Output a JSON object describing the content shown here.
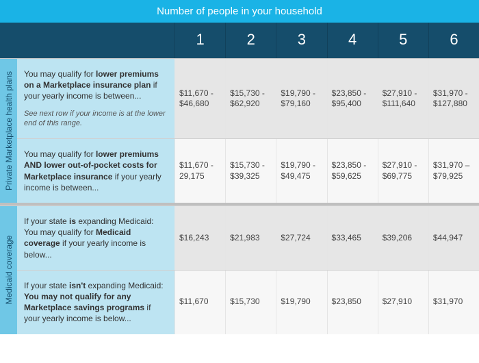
{
  "header": {
    "title": "Number of people in your household",
    "numbers": [
      "1",
      "2",
      "3",
      "4",
      "5",
      "6"
    ]
  },
  "colors": {
    "top_header_bg": "#1ab3e6",
    "num_row_bg": "#154d6b",
    "vstrip_bg": "#6fc7e6",
    "desc_bg": "#bde4f2",
    "row_odd_cell_bg": "#e6e6e6",
    "row_even_cell_bg": "#f7f7f7",
    "divider_bg": "#bfbfbf"
  },
  "sections": [
    {
      "label": "Private Marketplace health plans",
      "rows": [
        {
          "desc_pre": "You may qualify for ",
          "desc_bold": "lower premiums on a Marketplace insurance plan",
          "desc_post": " if your yearly income is between...",
          "note": "See next row if your income is at the lower end of this range.",
          "values": [
            "$11,670 - $46,680",
            "$15,730 - $62,920",
            "$19,790 - $79,160",
            "$23,850 - $95,400",
            "$27,910 - $111,640",
            "$31,970 - $127,880"
          ]
        },
        {
          "desc_pre": "You may qualify for ",
          "desc_bold": "lower premiums AND lower out-of-pocket costs for Marketplace insurance",
          "desc_post": " if your yearly income is between...",
          "note": "",
          "values": [
            "$11,670 - 29,175",
            "$15,730 - $39,325",
            "$19,790 - $49,475",
            "$23,850 - $59,625",
            "$27,910 - $69,775",
            "$31,970 – $79,925"
          ]
        }
      ]
    },
    {
      "label": "Medicaid coverage",
      "rows": [
        {
          "desc_pre": "If your state ",
          "desc_bold1": "is",
          "desc_mid": " expanding Medicaid: You may qualify for ",
          "desc_bold2": "Medicaid coverage",
          "desc_post": " if your yearly income is below...",
          "values": [
            "$16,243",
            "$21,983",
            "$27,724",
            "$33,465",
            "$39,206",
            "$44,947"
          ]
        },
        {
          "desc_pre": "If your state ",
          "desc_bold1": "isn't",
          "desc_mid": " expanding Medicaid: ",
          "desc_bold2": "You may not qualify for any Marketplace savings programs",
          "desc_post": " if your yearly income is below...",
          "values": [
            "$11,670",
            "$15,730",
            "$19,790",
            "$23,850",
            "$27,910",
            "$31,970"
          ]
        }
      ]
    }
  ]
}
